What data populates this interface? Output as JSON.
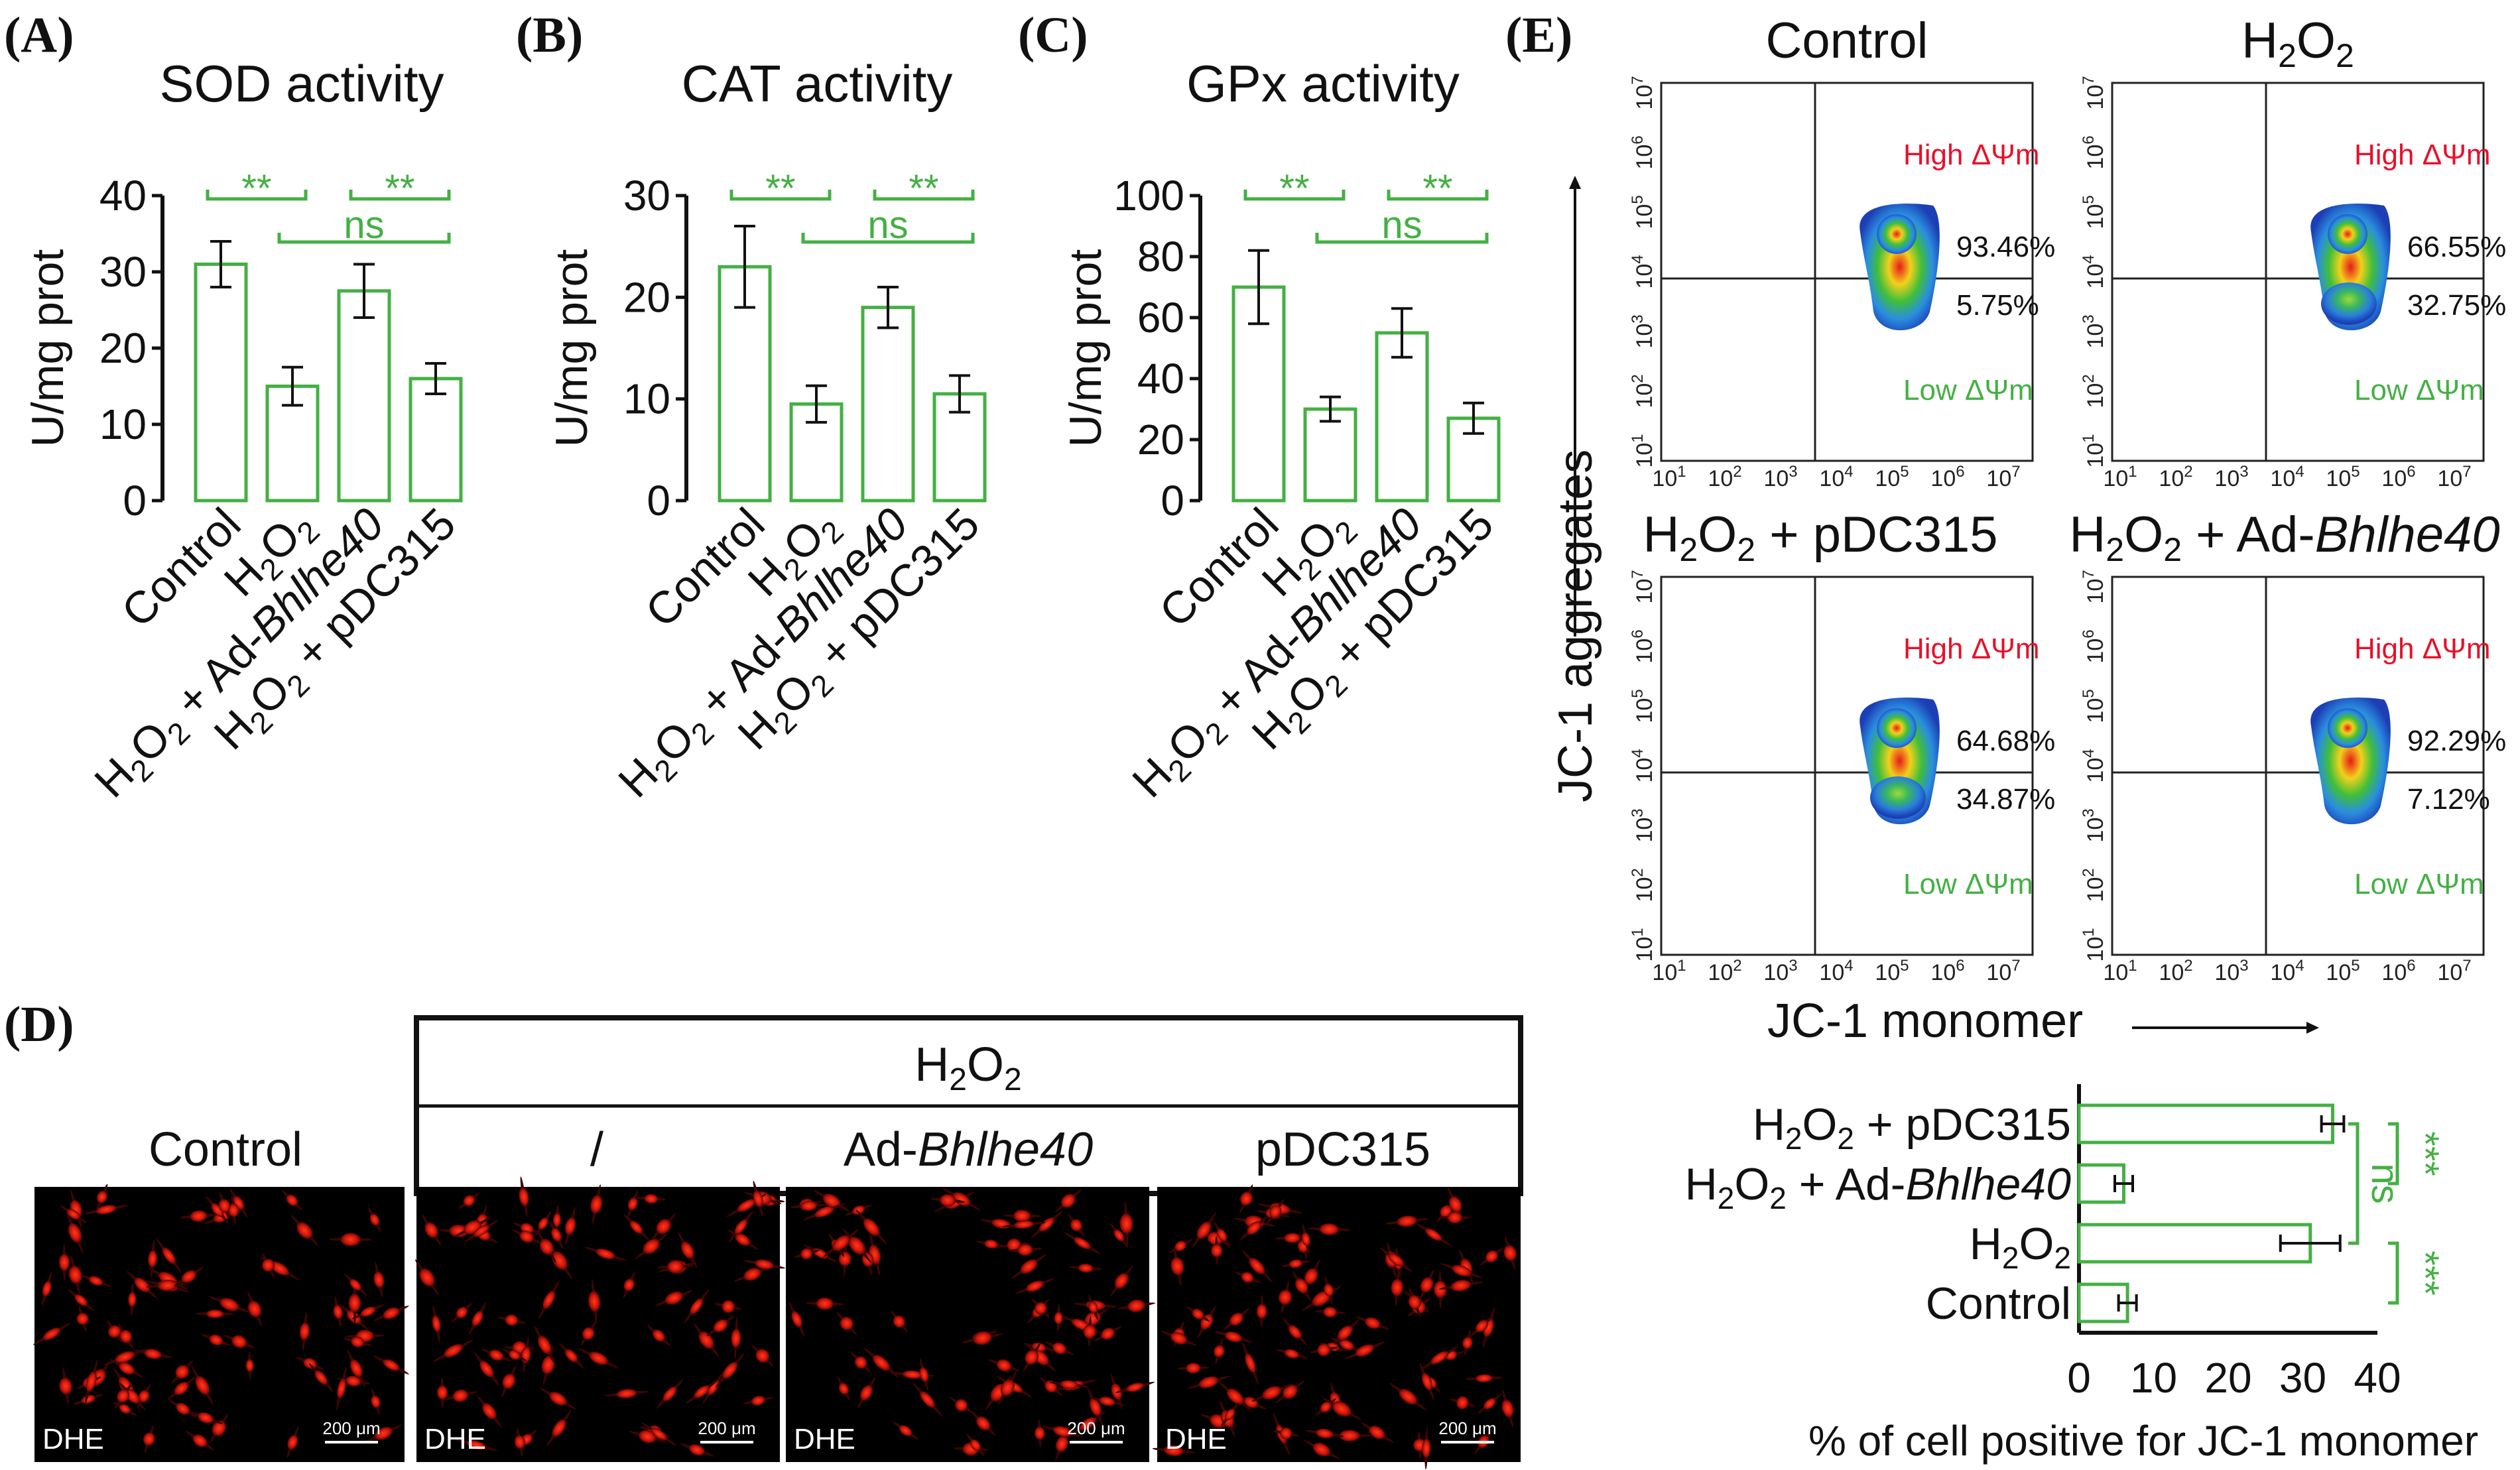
{
  "panels": {
    "A": {
      "label": "(A)",
      "title": "SOD activity"
    },
    "B": {
      "label": "(B)",
      "title": "CAT activity"
    },
    "C": {
      "label": "(C)",
      "title": "GPx activity"
    },
    "D": {
      "label": "(D)"
    },
    "E": {
      "label": "(E)"
    }
  },
  "chart_data": [
    {
      "id": "A",
      "type": "bar",
      "title": "SOD activity",
      "ylabel": "U/mg prot",
      "ylim": [
        0,
        40
      ],
      "yticks": [
        "0",
        "10",
        "20",
        "30",
        "40"
      ],
      "categories": [
        "Control",
        "H2O2",
        "H2O2 + Ad-Bhlhe40",
        "H2O2 + pDC315"
      ],
      "values": [
        31,
        15,
        27.5,
        16
      ],
      "errors": [
        3,
        2.5,
        3.5,
        2
      ],
      "significance": [
        {
          "from": 0,
          "to": 1,
          "label": "**"
        },
        {
          "from": 1,
          "to": 3,
          "label": "ns"
        },
        {
          "from": 2,
          "to": 3,
          "label": "**"
        }
      ]
    },
    {
      "id": "B",
      "type": "bar",
      "title": "CAT activity",
      "ylabel": "U/mg prot",
      "ylim": [
        0,
        30
      ],
      "yticks": [
        "0",
        "10",
        "20",
        "30"
      ],
      "categories": [
        "Control",
        "H2O2",
        "H2O2 + Ad-Bhlhe40",
        "H2O2 + pDC315"
      ],
      "values": [
        23,
        9.5,
        19,
        10.5
      ],
      "errors": [
        4,
        1.8,
        2,
        1.8
      ],
      "significance": [
        {
          "from": 0,
          "to": 1,
          "label": "**"
        },
        {
          "from": 1,
          "to": 3,
          "label": "ns"
        },
        {
          "from": 2,
          "to": 3,
          "label": "**"
        }
      ]
    },
    {
      "id": "C",
      "type": "bar",
      "title": "GPx activity",
      "ylabel": "U/mg prot",
      "ylim": [
        0,
        100
      ],
      "yticks": [
        "0",
        "20",
        "40",
        "60",
        "80",
        "100"
      ],
      "categories": [
        "Control",
        "H2O2",
        "H2O2 + Ad-Bhlhe40",
        "H2O2 + pDC315"
      ],
      "values": [
        70,
        30,
        55,
        27
      ],
      "errors": [
        12,
        4,
        8,
        5
      ],
      "significance": [
        {
          "from": 0,
          "to": 1,
          "label": "**"
        },
        {
          "from": 1,
          "to": 3,
          "label": "ns"
        },
        {
          "from": 2,
          "to": 3,
          "label": "**"
        }
      ]
    },
    {
      "id": "E-bar",
      "type": "bar",
      "orientation": "horizontal",
      "xlabel": "% of cell positive for JC-1 monomer",
      "xlim": [
        0,
        40
      ],
      "xticks": [
        "0",
        "10",
        "20",
        "30",
        "40"
      ],
      "categories": [
        "H2O2 + pDC315",
        "H2O2 + Ad-Bhlhe40",
        "H2O2",
        "Control"
      ],
      "values": [
        34,
        6,
        31,
        6.5
      ],
      "errors": [
        1.5,
        1.2,
        4,
        1.2
      ],
      "significance": [
        {
          "from": 0,
          "to": 1,
          "label": "***"
        },
        {
          "from": 0,
          "to": 2,
          "label": "ns"
        },
        {
          "from": 2,
          "to": 3,
          "label": "***"
        }
      ]
    }
  ],
  "flow": {
    "y_axis_label": "JC-1 aggregates",
    "x_axis_label": "JC-1 monomer",
    "ticks": [
      "10",
      "10",
      "10",
      "10",
      "10",
      "10",
      "10"
    ],
    "tick_exps": [
      "1",
      "2",
      "3",
      "4",
      "5",
      "6",
      "7"
    ],
    "high_label": "High ΔΨm",
    "low_label": "Low ΔΨm",
    "plots": [
      {
        "title": "Control",
        "high_pct": "93.46%",
        "low_pct": "5.75%",
        "lower_cluster": false
      },
      {
        "title": "H2O2",
        "high_pct": "66.55%",
        "low_pct": "32.75%",
        "lower_cluster": true
      },
      {
        "title": "H2O2 + pDC315",
        "high_pct": "64.68%",
        "low_pct": "34.87%",
        "lower_cluster": true
      },
      {
        "title": "H2O2 + Ad-Bhlhe40",
        "high_pct": "92.29%",
        "low_pct": "7.12%",
        "lower_cluster": false
      }
    ]
  },
  "micro": {
    "group_label": "H2O2",
    "columns": [
      "Control",
      "/",
      "Ad-Bhlhe40",
      "pDC315"
    ],
    "stain": "DHE",
    "scale": "200 μm"
  },
  "colors": {
    "green": "#44b044",
    "red": "#e8102a",
    "bar_fill": "#ffffff"
  }
}
